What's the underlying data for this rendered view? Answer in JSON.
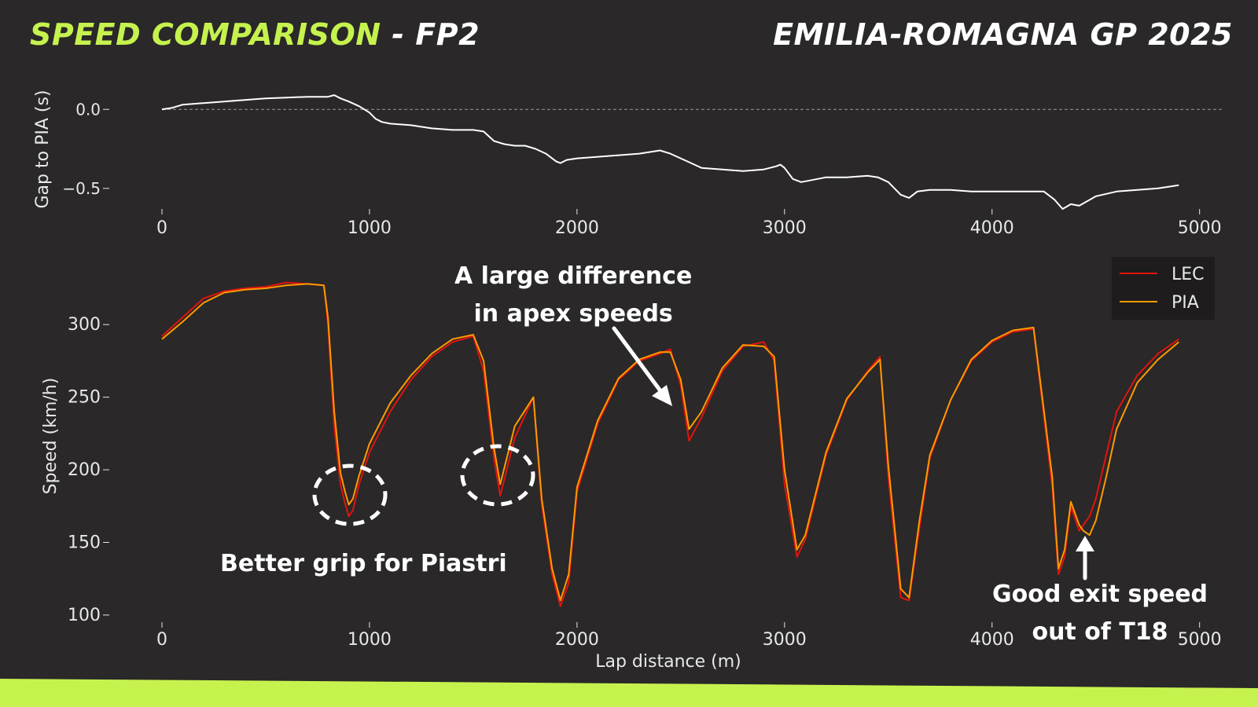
{
  "header": {
    "title_accent": "SPEED COMPARISON",
    "title_rest": " - FP2",
    "event": "EMILIA-ROMAGNA GP 2025"
  },
  "colors": {
    "background": "#2a2828",
    "accent": "#c6f24e",
    "lec": "#e0140f",
    "pia": "#ff9a00",
    "gap_line": "#ffffff"
  },
  "annotations": {
    "grip": "Better grip for Piastri",
    "apex_line1": "A large difference",
    "apex_line2": "in apex speeds",
    "exit_line1": "Good exit speed",
    "exit_line2": "out of T18"
  },
  "chart_data": [
    {
      "type": "line",
      "ylabel": "Gap to PIA (s)",
      "xlabel": "",
      "xlim": [
        -250,
        5130
      ],
      "ylim": [
        -0.66,
        0.22
      ],
      "xticks": [
        0,
        1000,
        2000,
        3000,
        4000,
        5000
      ],
      "yticks": [
        0.0,
        -0.5
      ],
      "ytick_labels": [
        "0.0",
        "−0.5"
      ],
      "reference_line": 0.0,
      "grid": false,
      "series": [
        {
          "x": [
            0,
            50,
            100,
            200,
            300,
            400,
            500,
            600,
            700,
            750,
            800,
            830,
            860,
            900,
            950,
            1000,
            1030,
            1060,
            1100,
            1200,
            1300,
            1400,
            1500,
            1550,
            1600,
            1650,
            1700,
            1750,
            1800,
            1850,
            1900,
            1920,
            1950,
            2000,
            2100,
            2200,
            2300,
            2400,
            2450,
            2500,
            2550,
            2600,
            2700,
            2800,
            2900,
            2960,
            2980,
            3000,
            3040,
            3080,
            3120,
            3200,
            3300,
            3400,
            3450,
            3500,
            3560,
            3600,
            3640,
            3700,
            3800,
            3900,
            4000,
            4100,
            4200,
            4250,
            4300,
            4340,
            4380,
            4420,
            4460,
            4500,
            4600,
            4700,
            4800,
            4900
          ],
          "y": [
            0.0,
            0.01,
            0.03,
            0.04,
            0.05,
            0.06,
            0.07,
            0.075,
            0.08,
            0.08,
            0.08,
            0.09,
            0.07,
            0.05,
            0.02,
            -0.02,
            -0.06,
            -0.08,
            -0.09,
            -0.1,
            -0.12,
            -0.13,
            -0.13,
            -0.14,
            -0.2,
            -0.22,
            -0.23,
            -0.23,
            -0.25,
            -0.28,
            -0.33,
            -0.34,
            -0.32,
            -0.31,
            -0.3,
            -0.29,
            -0.28,
            -0.26,
            -0.28,
            -0.31,
            -0.34,
            -0.37,
            -0.38,
            -0.39,
            -0.38,
            -0.36,
            -0.35,
            -0.37,
            -0.44,
            -0.46,
            -0.45,
            -0.43,
            -0.43,
            -0.42,
            -0.43,
            -0.46,
            -0.54,
            -0.56,
            -0.52,
            -0.51,
            -0.51,
            -0.52,
            -0.52,
            -0.52,
            -0.52,
            -0.52,
            -0.57,
            -0.63,
            -0.6,
            -0.61,
            -0.58,
            -0.55,
            -0.52,
            -0.51,
            -0.5,
            -0.48
          ]
        }
      ]
    },
    {
      "type": "line",
      "ylabel": "Speed (km/h)",
      "xlabel": "Lap distance (m)",
      "xlim": [
        -250,
        5130
      ],
      "ylim": [
        94,
        345
      ],
      "xticks": [
        0,
        1000,
        2000,
        3000,
        4000,
        5000
      ],
      "yticks": [
        100,
        150,
        200,
        250,
        300
      ],
      "grid": false,
      "legend": "top-right",
      "series": [
        {
          "name": "LEC",
          "color": "#e0140f",
          "x": [
            0,
            100,
            200,
            300,
            400,
            500,
            600,
            700,
            780,
            800,
            830,
            860,
            880,
            900,
            920,
            950,
            1000,
            1100,
            1200,
            1300,
            1400,
            1500,
            1550,
            1600,
            1630,
            1700,
            1790,
            1830,
            1880,
            1920,
            1960,
            2000,
            2100,
            2200,
            2300,
            2400,
            2450,
            2500,
            2540,
            2600,
            2700,
            2800,
            2900,
            2950,
            3000,
            3060,
            3100,
            3200,
            3300,
            3400,
            3460,
            3500,
            3560,
            3600,
            3650,
            3700,
            3800,
            3900,
            4000,
            4100,
            4200,
            4290,
            4320,
            4350,
            4380,
            4420,
            4440,
            4470,
            4500,
            4550,
            4600,
            4700,
            4800,
            4900
          ],
          "y": [
            292,
            305,
            318,
            323,
            325,
            326,
            329,
            328,
            327,
            300,
            230,
            190,
            178,
            168,
            172,
            190,
            212,
            240,
            262,
            278,
            288,
            292,
            268,
            208,
            182,
            222,
            250,
            176,
            128,
            106,
            122,
            185,
            232,
            262,
            275,
            280,
            283,
            258,
            220,
            236,
            268,
            285,
            288,
            275,
            190,
            140,
            152,
            210,
            248,
            268,
            278,
            195,
            112,
            110,
            160,
            208,
            248,
            275,
            288,
            295,
            297,
            188,
            128,
            140,
            175,
            158,
            162,
            168,
            180,
            210,
            240,
            265,
            280,
            290
          ]
        },
        {
          "name": "PIA",
          "color": "#ff9a00",
          "x": [
            0,
            100,
            200,
            300,
            400,
            500,
            600,
            700,
            780,
            800,
            830,
            860,
            880,
            900,
            920,
            950,
            1000,
            1100,
            1200,
            1300,
            1400,
            1500,
            1550,
            1600,
            1630,
            1700,
            1790,
            1830,
            1880,
            1920,
            1960,
            2000,
            2100,
            2200,
            2300,
            2400,
            2450,
            2500,
            2540,
            2600,
            2700,
            2800,
            2900,
            2950,
            3000,
            3060,
            3100,
            3200,
            3300,
            3400,
            3460,
            3500,
            3560,
            3600,
            3650,
            3700,
            3800,
            3900,
            4000,
            4100,
            4200,
            4290,
            4320,
            4350,
            4380,
            4420,
            4440,
            4470,
            4500,
            4550,
            4600,
            4700,
            4800,
            4900
          ],
          "y": [
            290,
            302,
            315,
            322,
            324,
            325,
            327,
            328,
            327,
            305,
            240,
            198,
            186,
            176,
            180,
            196,
            218,
            246,
            265,
            280,
            290,
            293,
            275,
            215,
            190,
            230,
            250,
            180,
            132,
            110,
            128,
            188,
            234,
            263,
            276,
            281,
            281,
            262,
            228,
            240,
            270,
            286,
            285,
            278,
            200,
            145,
            155,
            212,
            249,
            267,
            276,
            203,
            118,
            112,
            165,
            210,
            248,
            276,
            289,
            296,
            298,
            195,
            132,
            145,
            178,
            162,
            158,
            155,
            165,
            195,
            228,
            260,
            276,
            288
          ]
        }
      ]
    }
  ]
}
